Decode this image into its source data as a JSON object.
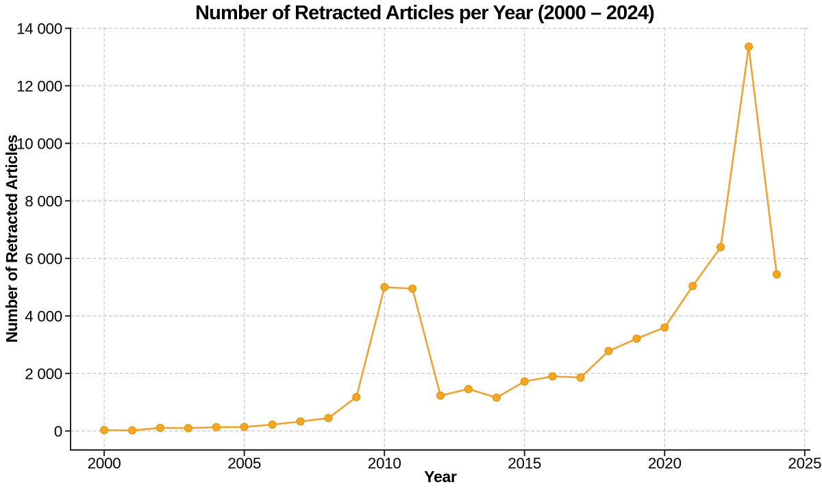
{
  "chart_data": {
    "type": "line",
    "title": "Number of Retracted Articles per Year (2000 – 2024)",
    "xlabel": "Year",
    "ylabel": "Number of Retracted Articles",
    "x": [
      2000,
      2001,
      2002,
      2003,
      2004,
      2005,
      2006,
      2007,
      2008,
      2009,
      2010,
      2011,
      2012,
      2013,
      2014,
      2015,
      2016,
      2017,
      2018,
      2019,
      2020,
      2021,
      2022,
      2023,
      2024
    ],
    "values": [
      30,
      20,
      110,
      100,
      130,
      140,
      220,
      330,
      450,
      1180,
      5000,
      4950,
      1230,
      1460,
      1160,
      1720,
      1900,
      1860,
      2780,
      3210,
      3600,
      5040,
      6390,
      13360,
      5440
    ],
    "xlim": [
      1998.8,
      2025.2
    ],
    "ylim": [
      -660,
      14030
    ],
    "x_ticks": [
      2000,
      2005,
      2010,
      2015,
      2020,
      2025
    ],
    "x_tick_labels": [
      "2000",
      "2005",
      "2010",
      "2015",
      "2020",
      "2025"
    ],
    "y_ticks": [
      0,
      2000,
      4000,
      6000,
      8000,
      10000,
      12000,
      14000
    ],
    "y_tick_labels": [
      "0",
      "2 000",
      "4 000",
      "6 000",
      "8 000",
      "10 000",
      "12 000",
      "14 000"
    ],
    "grid": true,
    "legend": "none",
    "colors": {
      "line": "#F0A330",
      "marker_fill": "#F5A623",
      "marker_stroke": "#DE920D",
      "grid": "#c9c9c9",
      "axis": "#212121",
      "text": "#000000",
      "background": "#ffffff"
    }
  }
}
